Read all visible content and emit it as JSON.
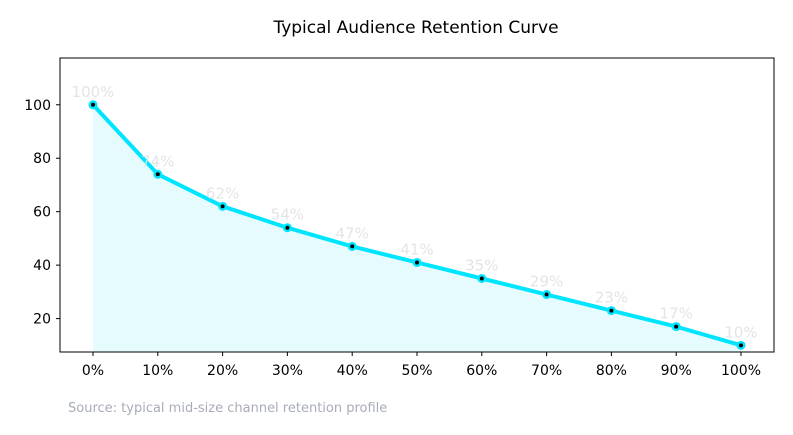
{
  "chart_data": {
    "type": "line",
    "title": "Typical Audience Retention Curve",
    "xlabel": "",
    "ylabel": "",
    "categories": [
      "0%",
      "10%",
      "20%",
      "30%",
      "40%",
      "50%",
      "60%",
      "70%",
      "80%",
      "90%",
      "100%"
    ],
    "series": [
      {
        "values": [
          100,
          74,
          62,
          54,
          47,
          41,
          35,
          29,
          23,
          17,
          10
        ],
        "data_labels": [
          "100%",
          "74%",
          "62%",
          "54%",
          "47%",
          "41%",
          "35%",
          "29%",
          "23%",
          "17%",
          "10%"
        ],
        "color": "#00e5ff",
        "fill_color": "#e6fbfd",
        "marker_color": "#000000"
      }
    ],
    "ylim": [
      7.5,
      117.5
    ],
    "y_ticks": [
      20,
      40,
      60,
      80,
      100
    ],
    "grid": false,
    "legend": "none",
    "filled_area": true,
    "source_note": "Source: typical mid-size channel retention profile"
  }
}
